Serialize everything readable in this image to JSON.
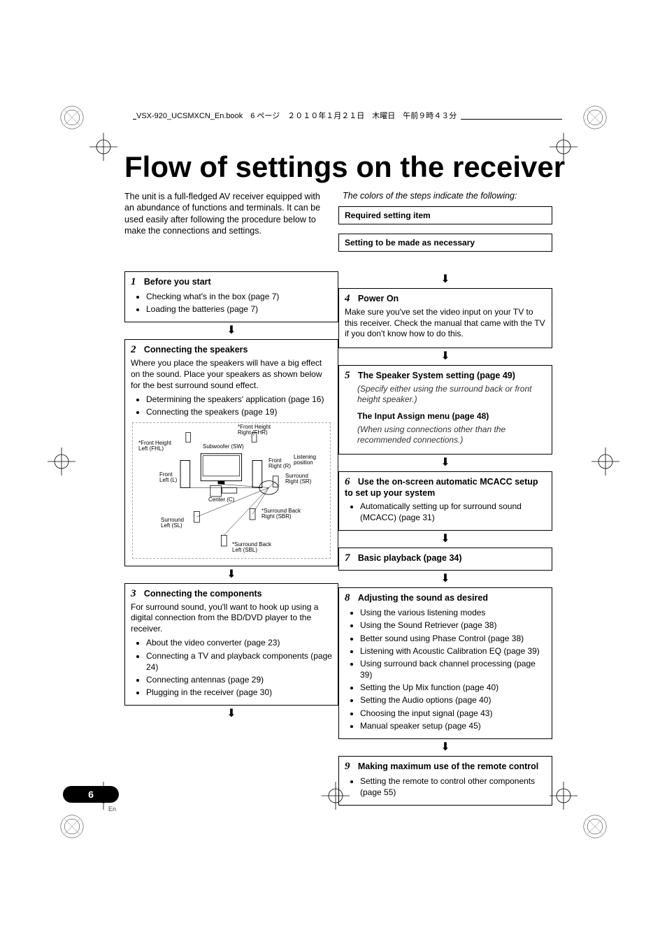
{
  "header": "VSX-920_UCSMXCN_En.book　6 ページ　２０１０年１月２１日　木曜日　午前９時４３分",
  "title": "Flow of settings on the receiver",
  "intro": "The unit is a full-fledged AV receiver equipped with an abundance of functions and terminals. It can be used easily after following the procedure below to make the connections and settings.",
  "legend_label": "The colors of the steps indicate the following:",
  "legend": {
    "required": "Required setting item",
    "optional": "Setting to be made as necessary"
  },
  "step1": {
    "num": "1",
    "title": "Before you start",
    "items": [
      "Checking what's in the box (page 7)",
      "Loading the batteries (page 7)"
    ]
  },
  "step2": {
    "num": "2",
    "title": "Connecting the speakers",
    "desc": "Where you place the speakers will have a big effect on the sound. Place your speakers as shown below for the best surround sound effect.",
    "items": [
      "Determining the speakers' application (page 16)",
      "Connecting the speakers (page 19)"
    ],
    "diagram": {
      "fhr": "*Front Height\nRight (FHR)",
      "fhl": "*Front Height\nLeft (FHL)",
      "sw": "Subwoofer (SW)",
      "r": "Front\nRight (R)",
      "l": "Front\nLeft (L)",
      "c": "Center (C)",
      "sr": "Surround\nRight (SR)",
      "sl": "Surround\nLeft (SL)",
      "sbr": "*Surround Back\nRight (SBR)",
      "sbl": "*Surround Back\nLeft (SBL)",
      "listen": "Listening\nposition"
    }
  },
  "step3": {
    "num": "3",
    "title": "Connecting the components",
    "desc": "For surround sound, you'll want to hook up using a digital connection from the BD/DVD player to the receiver.",
    "items": [
      "About the video converter (page 23)",
      "Connecting a TV and playback components (page 24)",
      "Connecting antennas (page 29)",
      "Plugging in the receiver (page 30)"
    ]
  },
  "step4": {
    "num": "4",
    "title": "Power On",
    "desc": "Make sure you've set the video input on your TV to this receiver. Check the manual that came with the TV if you don't know how to do this."
  },
  "step5": {
    "num": "5",
    "title1": "The Speaker System setting (page 49)",
    "sub1": "(Specify either using the surround back or front height speaker.)",
    "title2": "The Input Assign menu (page 48)",
    "sub2": "(When using connections other than the recommended connections.)"
  },
  "step6": {
    "num": "6",
    "title": "Use the on-screen automatic MCACC setup to set up your system",
    "items": [
      "Automatically setting up for surround sound (MCACC) (page 31)"
    ]
  },
  "step7": {
    "num": "7",
    "title": "Basic playback (page 34)"
  },
  "step8": {
    "num": "8",
    "title": "Adjusting the sound as desired",
    "items": [
      "Using the various listening modes",
      "Using the Sound Retriever (page 38)",
      "Better sound using Phase Control (page 38)",
      "Listening with Acoustic Calibration EQ (page 39)",
      "Using surround back channel processing (page 39)",
      "Setting the Up Mix function (page 40)",
      "Setting the Audio options (page 40)",
      "Choosing the input signal (page 43)",
      "Manual speaker setup (page 45)"
    ]
  },
  "step9": {
    "num": "9",
    "title": "Making maximum use of the remote control",
    "items": [
      "Setting the remote to control other components (page 55)"
    ]
  },
  "page_number": "6",
  "page_lang": "En",
  "colors": {
    "text": "#000000",
    "bg": "#ffffff",
    "dash": "#aaaaaa"
  }
}
